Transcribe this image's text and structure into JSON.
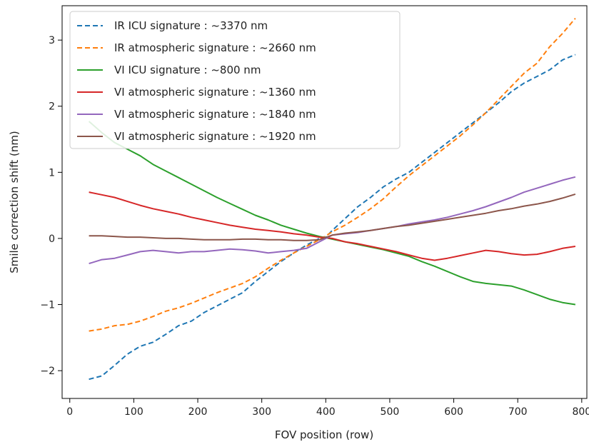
{
  "chart_data": {
    "type": "line",
    "title": "",
    "xlabel": "FOV position (row)",
    "ylabel": "Smile correction shift (nm)",
    "xlim": [
      -12,
      808
    ],
    "ylim": [
      -2.42,
      3.52
    ],
    "xticks": [
      0,
      100,
      200,
      300,
      400,
      500,
      600,
      700,
      800
    ],
    "yticks": [
      -2,
      -1,
      0,
      1,
      2,
      3
    ],
    "xtick_labels": [
      "0",
      "100",
      "200",
      "300",
      "400",
      "500",
      "600",
      "700",
      "800"
    ],
    "ytick_labels": [
      "−2",
      "−1",
      "0",
      "1",
      "2",
      "3"
    ],
    "grid": false,
    "legend_position": "top-left",
    "series": [
      {
        "name": "IR ICU signature : ~3370 nm",
        "color": "#1f77b4",
        "dashed": true,
        "x": [
          30,
          50,
          70,
          90,
          110,
          130,
          150,
          170,
          190,
          210,
          230,
          250,
          270,
          290,
          310,
          330,
          350,
          370,
          390,
          400,
          410,
          430,
          450,
          470,
          490,
          510,
          530,
          550,
          570,
          590,
          610,
          630,
          650,
          670,
          690,
          710,
          730,
          750,
          770,
          790
        ],
        "y": [
          -2.13,
          -2.08,
          -1.92,
          -1.75,
          -1.63,
          -1.57,
          -1.45,
          -1.32,
          -1.25,
          -1.12,
          -1.02,
          -0.92,
          -0.82,
          -0.65,
          -0.5,
          -0.35,
          -0.22,
          -0.1,
          0.0,
          0.02,
          0.12,
          0.3,
          0.48,
          0.62,
          0.78,
          0.9,
          1.0,
          1.15,
          1.3,
          1.45,
          1.6,
          1.75,
          1.9,
          2.05,
          2.22,
          2.35,
          2.45,
          2.55,
          2.7,
          2.78
        ]
      },
      {
        "name": "IR atmospheric signature : ~2660 nm",
        "color": "#ff7f0e",
        "dashed": true,
        "x": [
          30,
          50,
          70,
          90,
          110,
          130,
          150,
          170,
          190,
          210,
          230,
          250,
          270,
          290,
          310,
          330,
          350,
          370,
          390,
          410,
          430,
          450,
          470,
          490,
          510,
          530,
          550,
          570,
          590,
          610,
          630,
          650,
          670,
          690,
          710,
          730,
          750,
          770,
          790
        ],
        "y": [
          -1.4,
          -1.37,
          -1.32,
          -1.3,
          -1.25,
          -1.18,
          -1.1,
          -1.05,
          -0.98,
          -0.9,
          -0.82,
          -0.75,
          -0.68,
          -0.58,
          -0.45,
          -0.33,
          -0.22,
          -0.12,
          -0.02,
          0.1,
          0.2,
          0.32,
          0.45,
          0.6,
          0.78,
          0.95,
          1.1,
          1.25,
          1.4,
          1.55,
          1.72,
          1.9,
          2.1,
          2.3,
          2.5,
          2.65,
          2.9,
          3.1,
          3.33
        ]
      },
      {
        "name": "VI ICU signature : ~800 nm",
        "color": "#2ca02c",
        "dashed": false,
        "x": [
          30,
          50,
          70,
          90,
          110,
          130,
          150,
          170,
          190,
          210,
          230,
          250,
          270,
          290,
          310,
          330,
          350,
          370,
          390,
          410,
          430,
          450,
          470,
          490,
          510,
          530,
          550,
          570,
          590,
          610,
          630,
          650,
          670,
          690,
          710,
          730,
          750,
          770,
          790
        ],
        "y": [
          1.77,
          1.6,
          1.45,
          1.35,
          1.25,
          1.12,
          1.02,
          0.92,
          0.82,
          0.72,
          0.62,
          0.53,
          0.44,
          0.35,
          0.28,
          0.2,
          0.14,
          0.08,
          0.03,
          -0.01,
          -0.05,
          -0.09,
          -0.13,
          -0.17,
          -0.22,
          -0.27,
          -0.35,
          -0.42,
          -0.5,
          -0.58,
          -0.65,
          -0.68,
          -0.7,
          -0.72,
          -0.78,
          -0.85,
          -0.92,
          -0.97,
          -1.0
        ]
      },
      {
        "name": "VI atmospheric signature : ~1360 nm",
        "color": "#d62728",
        "dashed": false,
        "x": [
          30,
          50,
          70,
          90,
          110,
          130,
          150,
          170,
          190,
          210,
          230,
          250,
          270,
          290,
          310,
          330,
          350,
          370,
          390,
          410,
          430,
          450,
          470,
          490,
          510,
          530,
          550,
          570,
          590,
          610,
          630,
          650,
          670,
          690,
          710,
          730,
          750,
          770,
          790
        ],
        "y": [
          0.7,
          0.66,
          0.62,
          0.56,
          0.5,
          0.45,
          0.41,
          0.37,
          0.32,
          0.28,
          0.24,
          0.2,
          0.17,
          0.14,
          0.12,
          0.1,
          0.07,
          0.05,
          0.02,
          0.0,
          -0.05,
          -0.08,
          -0.12,
          -0.16,
          -0.2,
          -0.25,
          -0.3,
          -0.33,
          -0.3,
          -0.26,
          -0.22,
          -0.18,
          -0.2,
          -0.23,
          -0.25,
          -0.24,
          -0.2,
          -0.15,
          -0.12
        ]
      },
      {
        "name": "VI atmospheric signature : ~1840 nm",
        "color": "#9467bd",
        "dashed": false,
        "x": [
          30,
          50,
          70,
          90,
          110,
          130,
          150,
          170,
          190,
          210,
          230,
          250,
          270,
          290,
          310,
          330,
          350,
          370,
          390,
          410,
          430,
          450,
          470,
          490,
          510,
          530,
          550,
          570,
          590,
          610,
          630,
          650,
          670,
          690,
          710,
          730,
          750,
          770,
          790
        ],
        "y": [
          -0.38,
          -0.32,
          -0.3,
          -0.25,
          -0.2,
          -0.18,
          -0.2,
          -0.22,
          -0.2,
          -0.2,
          -0.18,
          -0.16,
          -0.17,
          -0.19,
          -0.22,
          -0.2,
          -0.18,
          -0.15,
          -0.05,
          0.05,
          0.07,
          0.09,
          0.12,
          0.15,
          0.18,
          0.22,
          0.25,
          0.28,
          0.32,
          0.37,
          0.42,
          0.48,
          0.55,
          0.62,
          0.7,
          0.76,
          0.82,
          0.88,
          0.93
        ]
      },
      {
        "name": "VI atmospheric signature : ~1920 nm",
        "color": "#8c564b",
        "dashed": false,
        "x": [
          30,
          50,
          70,
          90,
          110,
          130,
          150,
          170,
          190,
          210,
          230,
          250,
          270,
          290,
          310,
          330,
          350,
          370,
          390,
          410,
          430,
          450,
          470,
          490,
          510,
          530,
          550,
          570,
          590,
          610,
          630,
          650,
          670,
          690,
          710,
          730,
          750,
          770,
          790
        ],
        "y": [
          0.04,
          0.04,
          0.03,
          0.02,
          0.02,
          0.01,
          0.0,
          0.0,
          -0.01,
          -0.02,
          -0.02,
          -0.02,
          -0.01,
          -0.01,
          -0.02,
          -0.02,
          -0.03,
          -0.03,
          -0.02,
          0.05,
          0.08,
          0.1,
          0.12,
          0.15,
          0.18,
          0.2,
          0.23,
          0.26,
          0.29,
          0.32,
          0.35,
          0.38,
          0.42,
          0.45,
          0.49,
          0.52,
          0.56,
          0.61,
          0.67
        ]
      }
    ]
  }
}
